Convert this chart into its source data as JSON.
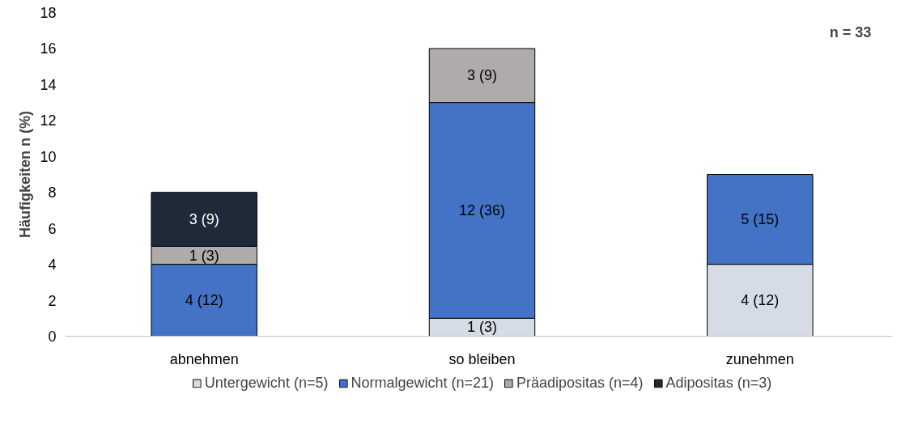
{
  "chart_data": {
    "type": "bar",
    "stacked": true,
    "ylabel": "Häufigkeiten n (%)",
    "categories": [
      "abnehmen",
      "so bleiben",
      "zunehmen"
    ],
    "series": [
      {
        "name": "Untergewicht (n=5)",
        "color": "#d6dce5",
        "values": [
          null,
          1,
          4
        ],
        "value_labels": [
          null,
          "1 (3)",
          "4 (12)"
        ]
      },
      {
        "name": "Normalgewicht (n=21)",
        "color": "#4472c4",
        "values": [
          4,
          12,
          5
        ],
        "value_labels": [
          "4 (12)",
          "12 (36)",
          "5 (15)"
        ]
      },
      {
        "name": "Präadipositas (n=4)",
        "color": "#afabab",
        "values": [
          1,
          3,
          null
        ],
        "value_labels": [
          "1 (3)",
          "3 (9)",
          null
        ]
      },
      {
        "name": "Adipositas (n=3)",
        "color": "#1f2a38",
        "values": [
          3,
          null,
          null
        ],
        "value_labels": [
          "3 (9)",
          null,
          null
        ]
      }
    ],
    "ylim": [
      0,
      18
    ],
    "yticks": [
      0,
      2,
      4,
      6,
      8,
      10,
      12,
      14,
      16,
      18
    ],
    "grid": false,
    "legend": "bottom",
    "annotations": [
      "n = 33"
    ]
  }
}
